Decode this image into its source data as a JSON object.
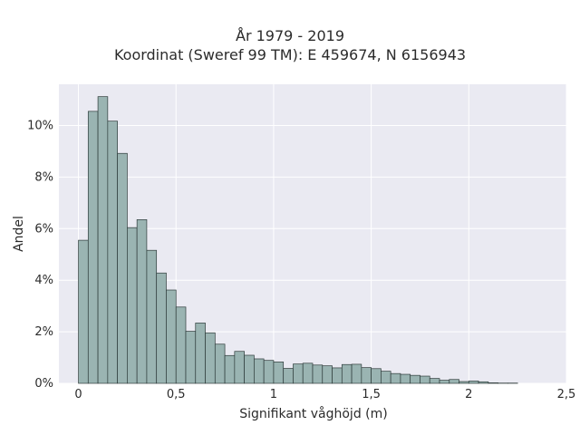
{
  "chart_data": {
    "type": "bar",
    "title": "År 1979 - 2019",
    "subtitle": "Koordinat (Sweref 99 TM): E 459674, N 6156943",
    "xlabel": "Signifikant våghöjd (m)",
    "ylabel": "Andel",
    "xlim": [
      -0.1,
      2.5
    ],
    "ylim": [
      0,
      0.116
    ],
    "xticks": [
      0,
      0.5,
      1,
      1.5,
      2,
      2.5
    ],
    "xtick_labels": [
      "0",
      "0,5",
      "1",
      "1,5",
      "2",
      "2,5"
    ],
    "yticks": [
      0,
      0.02,
      0.04,
      0.06,
      0.08,
      0.1
    ],
    "ytick_labels": [
      "0%",
      "2%",
      "4%",
      "6%",
      "8%",
      "10%"
    ],
    "grid": true,
    "bin_width": 0.05,
    "bin_starts": [
      0,
      0.05,
      0.1,
      0.15,
      0.2,
      0.25,
      0.3,
      0.35,
      0.4,
      0.45,
      0.5,
      0.55,
      0.6,
      0.65,
      0.7,
      0.75,
      0.8,
      0.85,
      0.9,
      0.95,
      1,
      1.05,
      1.1,
      1.15,
      1.2,
      1.25,
      1.3,
      1.35,
      1.4,
      1.45,
      1.5,
      1.55,
      1.6,
      1.65,
      1.7,
      1.75,
      1.8,
      1.85,
      1.9,
      1.95,
      2,
      2.05,
      2.1,
      2.15,
      2.2
    ],
    "values": [
      0.0555,
      0.1055,
      0.1112,
      0.1017,
      0.0892,
      0.0604,
      0.0635,
      0.0516,
      0.0428,
      0.0362,
      0.0296,
      0.0202,
      0.0234,
      0.0196,
      0.0152,
      0.0108,
      0.0124,
      0.0109,
      0.0095,
      0.0089,
      0.0083,
      0.0058,
      0.0075,
      0.0078,
      0.0071,
      0.0068,
      0.006,
      0.0073,
      0.0074,
      0.0061,
      0.0057,
      0.0047,
      0.0038,
      0.0035,
      0.0031,
      0.0028,
      0.0019,
      0.0012,
      0.0015,
      0.0007,
      0.0009,
      0.0006,
      0.0002,
      0.0001,
      0.0001
    ],
    "colors": {
      "bar_fill": "#9ab4b2",
      "bar_stroke": "#2e3b3a",
      "plot_bg": "#eaeaf2",
      "grid": "#ffffff"
    }
  }
}
